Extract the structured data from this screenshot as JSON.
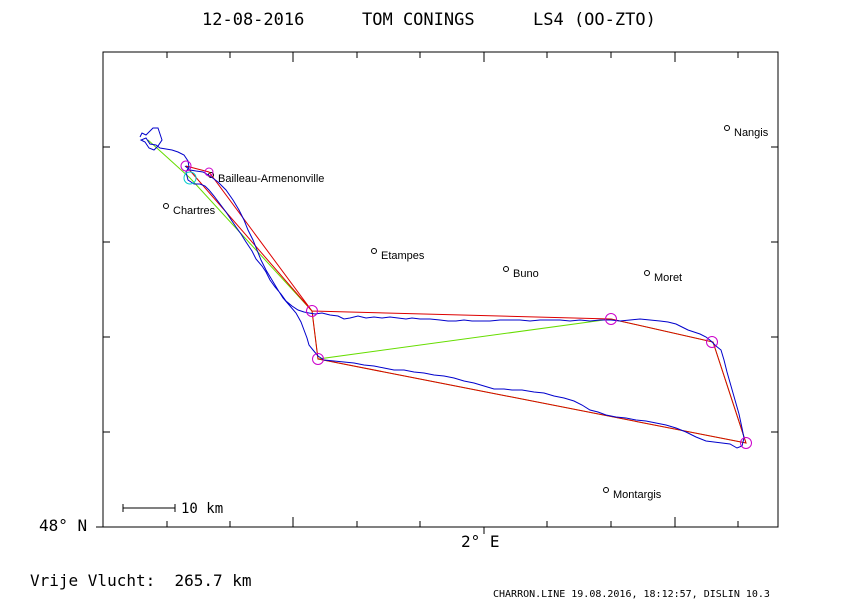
{
  "header": {
    "date": "12-08-2016",
    "pilot": "TOM CONINGS",
    "glider": "LS4 (OO-ZTO)"
  },
  "axes": {
    "lat_label": "48° N",
    "lon_label": "2° E"
  },
  "scale": {
    "label": "10 km"
  },
  "cities": [
    {
      "name": "Nangis"
    },
    {
      "name": "Bailleau-Armenonville"
    },
    {
      "name": "Chartres"
    },
    {
      "name": "Etampes"
    },
    {
      "name": "Buno"
    },
    {
      "name": "Moret"
    },
    {
      "name": "Montargis"
    }
  ],
  "footer": {
    "distance": "Vrije Vlucht:  265.7 km",
    "credit": "CHARRON.LINE 19.08.2016, 18:12:57, DISLIN 10.3"
  },
  "colors": {
    "track": "#0000cc",
    "declared_task": "#dd0000",
    "scored_task": "#66dd00",
    "turnpoint": "#cc00cc",
    "start_point": "#00cccc"
  }
}
